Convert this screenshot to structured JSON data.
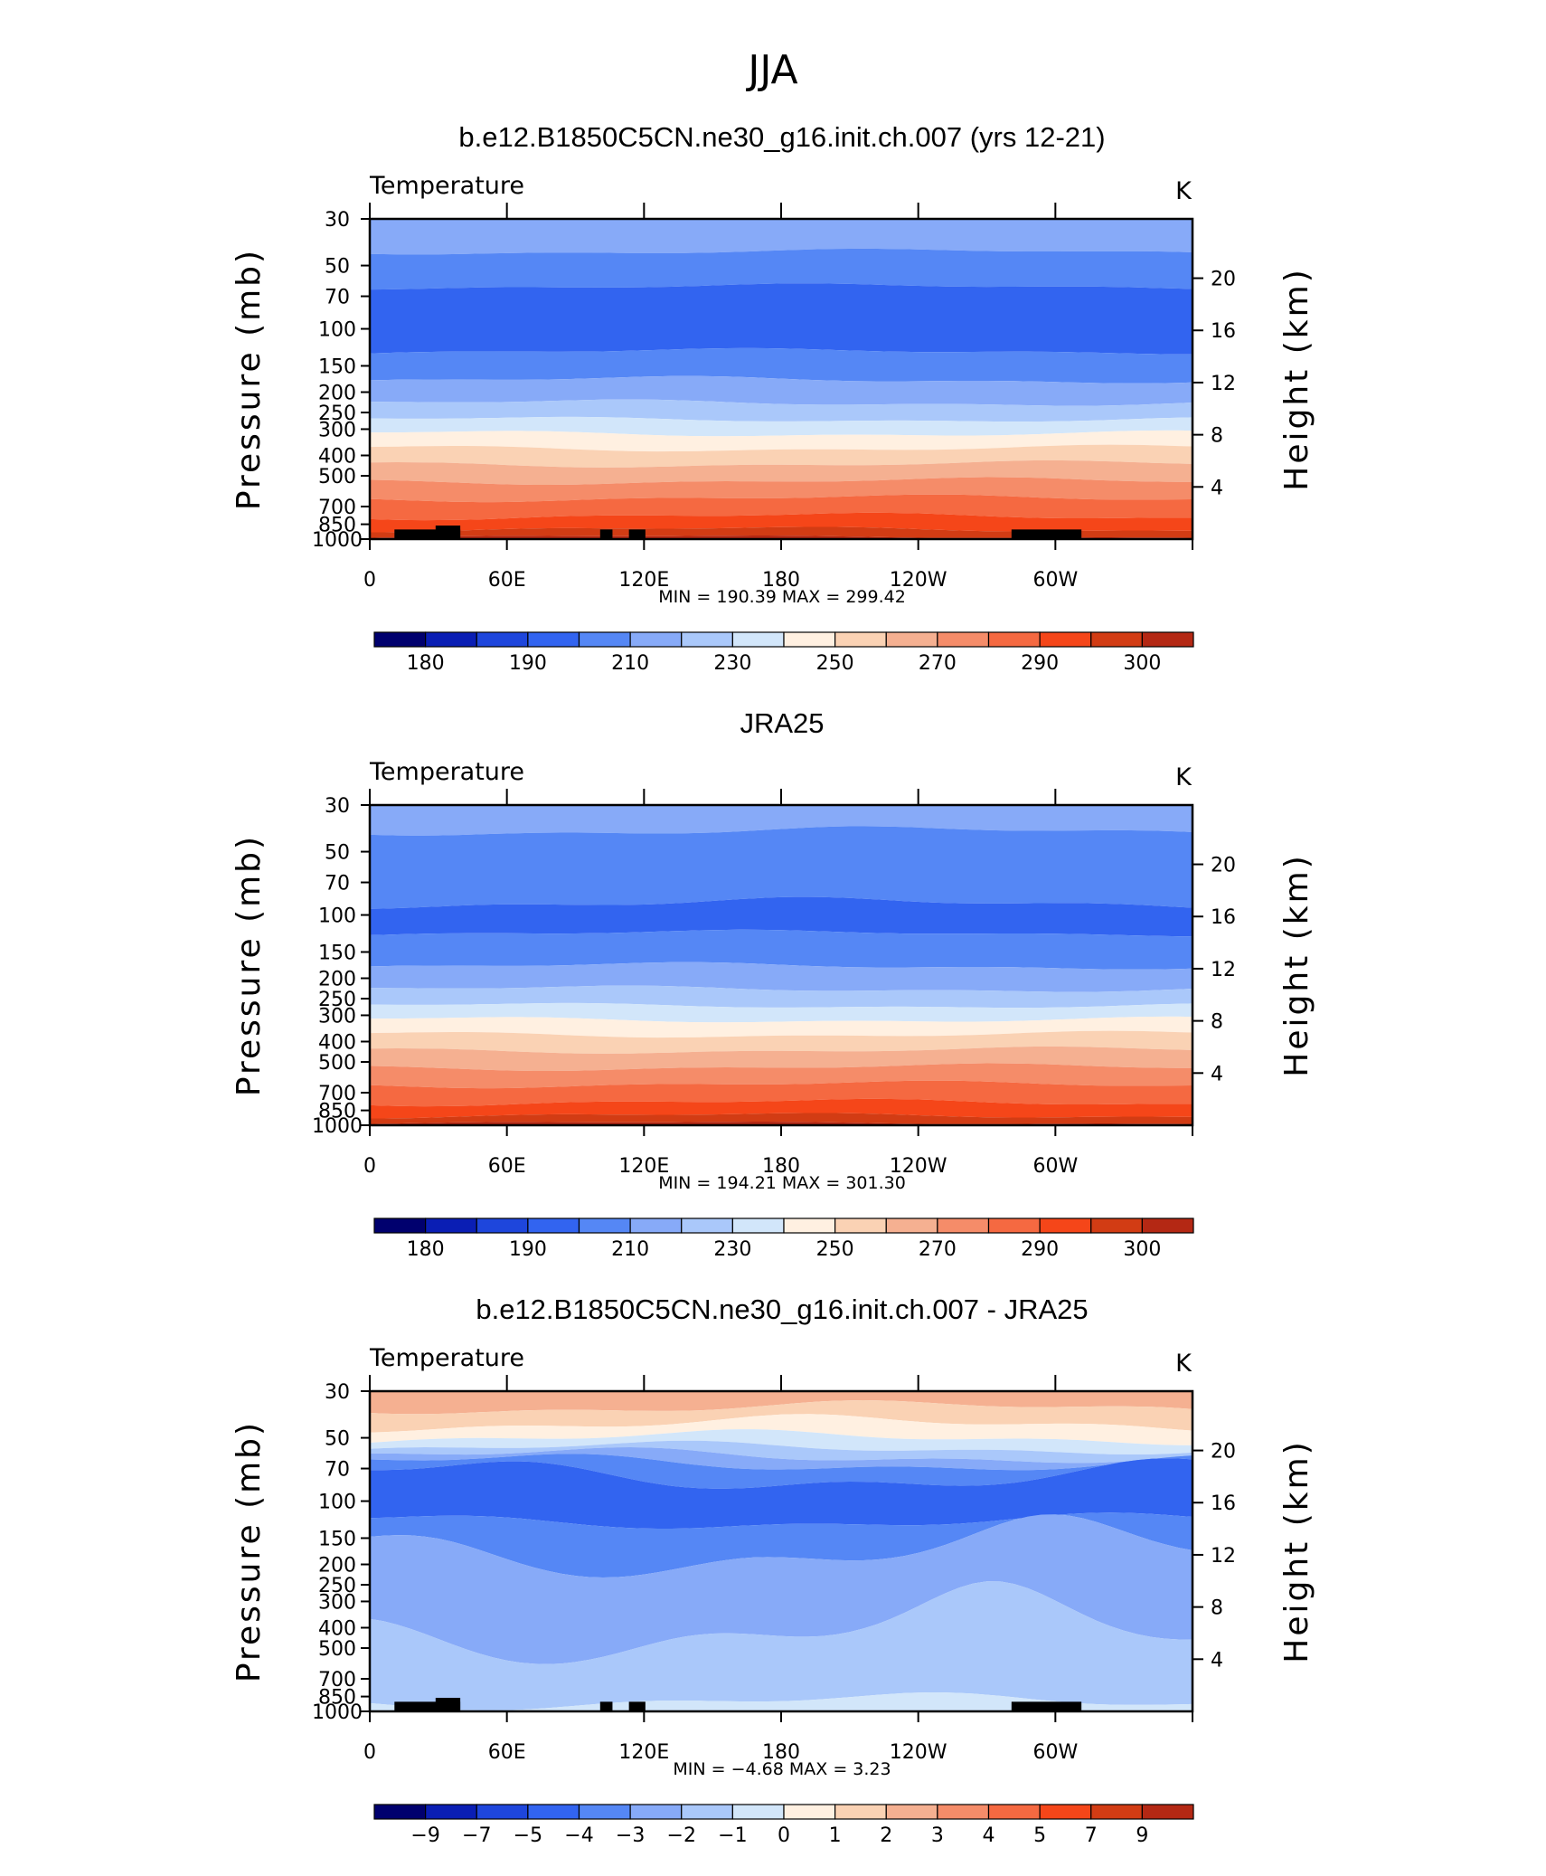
{
  "main_title": "JJA",
  "colors": {
    "temp_scale": [
      "#00006e",
      "#0a1eb4",
      "#1e46dc",
      "#3264f0",
      "#5587f5",
      "#87aaf8",
      "#aac8fa",
      "#d2e6fa",
      "#fff0e1",
      "#fad2b4",
      "#f5b091",
      "#f58c69",
      "#f56941",
      "#f54619",
      "#d23c14",
      "#b42814",
      "#821414"
    ],
    "diff_scale": [
      "#00006e",
      "#0a1eb4",
      "#1e46dc",
      "#3264f0",
      "#5587f5",
      "#87aaf8",
      "#aac8fa",
      "#d2e6fa",
      "#fff0e1",
      "#fad2b4",
      "#f5b091",
      "#f58c69",
      "#f56941",
      "#f54619",
      "#d23c14",
      "#b42814",
      "#821414"
    ],
    "topography": "#000000"
  },
  "chart_data": [
    {
      "type": "contour",
      "title": "b.e12.B1850C5CN.ne30_g16.init.ch.007 (yrs 12-21)",
      "variable": "Temperature",
      "units": "K",
      "ylabel": "Pressure (mb)",
      "y2label": "Height (km)",
      "y_ticks": [
        "30",
        "50",
        "70",
        "100",
        "150",
        "200",
        "250",
        "300",
        "400",
        "500",
        "700",
        "850",
        "1000"
      ],
      "y2_ticks": [
        "20",
        "16",
        "12",
        "8",
        "4"
      ],
      "x_ticks": [
        "0",
        "60E",
        "120E",
        "180",
        "120W",
        "60W"
      ],
      "min_max": "MIN =  190.39   MAX =  299.42",
      "colorbar_labels": [
        "180",
        "190",
        "210",
        "230",
        "250",
        "270",
        "290",
        "300"
      ],
      "min": 190.39,
      "max": 299.42
    },
    {
      "type": "contour",
      "title": "JRA25",
      "variable": "Temperature",
      "units": "K",
      "ylabel": "Pressure (mb)",
      "y2label": "Height (km)",
      "y_ticks": [
        "30",
        "50",
        "70",
        "100",
        "150",
        "200",
        "250",
        "300",
        "400",
        "500",
        "700",
        "850",
        "1000"
      ],
      "y2_ticks": [
        "20",
        "16",
        "12",
        "8",
        "4"
      ],
      "x_ticks": [
        "0",
        "60E",
        "120E",
        "180",
        "120W",
        "60W"
      ],
      "min_max": "MIN =  194.21   MAX =  301.30",
      "colorbar_labels": [
        "180",
        "190",
        "210",
        "230",
        "250",
        "270",
        "290",
        "300"
      ],
      "min": 194.21,
      "max": 301.3
    },
    {
      "type": "contour",
      "title": "b.e12.B1850C5CN.ne30_g16.init.ch.007 - JRA25",
      "variable": "Temperature",
      "units": "K",
      "ylabel": "Pressure (mb)",
      "y2label": "Height (km)",
      "y_ticks": [
        "30",
        "50",
        "70",
        "100",
        "150",
        "200",
        "250",
        "300",
        "400",
        "500",
        "700",
        "850",
        "1000"
      ],
      "y2_ticks": [
        "20",
        "16",
        "12",
        "8",
        "4"
      ],
      "x_ticks": [
        "0",
        "60E",
        "120E",
        "180",
        "120W",
        "60W"
      ],
      "min_max": "MIN =   −4.68   MAX =     3.23",
      "colorbar_labels": [
        "−9",
        "−7",
        "−5",
        "−4",
        "−3",
        "−2",
        "−1",
        "0",
        "1",
        "2",
        "3",
        "4",
        "5",
        "7",
        "9"
      ],
      "min": -4.68,
      "max": 3.23
    }
  ]
}
